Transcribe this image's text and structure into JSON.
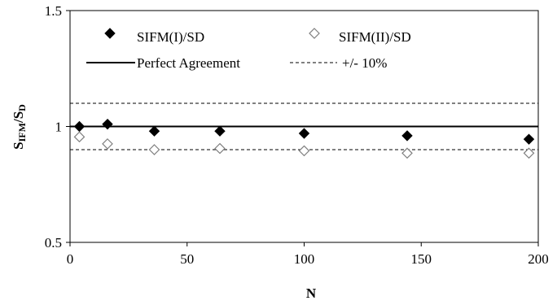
{
  "chart_data": {
    "type": "scatter",
    "xlabel": "N",
    "ylabel": {
      "main": "S",
      "sub1": "IFM",
      "slash": "/S",
      "sub2": "D"
    },
    "xlim": [
      0,
      200
    ],
    "ylim": [
      0.5,
      1.5
    ],
    "x_ticks": [
      0,
      50,
      100,
      150,
      200
    ],
    "y_ticks": [
      {
        "value": 0.5,
        "label": "0.5"
      },
      {
        "value": 1.0,
        "label": "1"
      },
      {
        "value": 1.5,
        "label": "1.5"
      }
    ],
    "grid": false,
    "legend_position": "top",
    "series": [
      {
        "name": "SIFM(I)/SD",
        "marker": "filled-diamond",
        "color": "#000000",
        "x": [
          4,
          16,
          36,
          64,
          100,
          144,
          196
        ],
        "y": [
          1.0,
          1.01,
          0.98,
          0.98,
          0.97,
          0.96,
          0.945
        ]
      },
      {
        "name": "SIFM(II)/SD",
        "marker": "open-diamond",
        "color": "#7f7f7f",
        "x": [
          4,
          16,
          36,
          64,
          100,
          144,
          196
        ],
        "y": [
          0.955,
          0.925,
          0.9,
          0.905,
          0.895,
          0.885,
          0.885
        ]
      }
    ],
    "reference_lines": [
      {
        "name": "Perfect Agreement",
        "y": 1.0,
        "style": "solid"
      },
      {
        "name": "+/- 10%",
        "y": [
          0.9,
          1.1
        ],
        "style": "dashed"
      }
    ]
  }
}
